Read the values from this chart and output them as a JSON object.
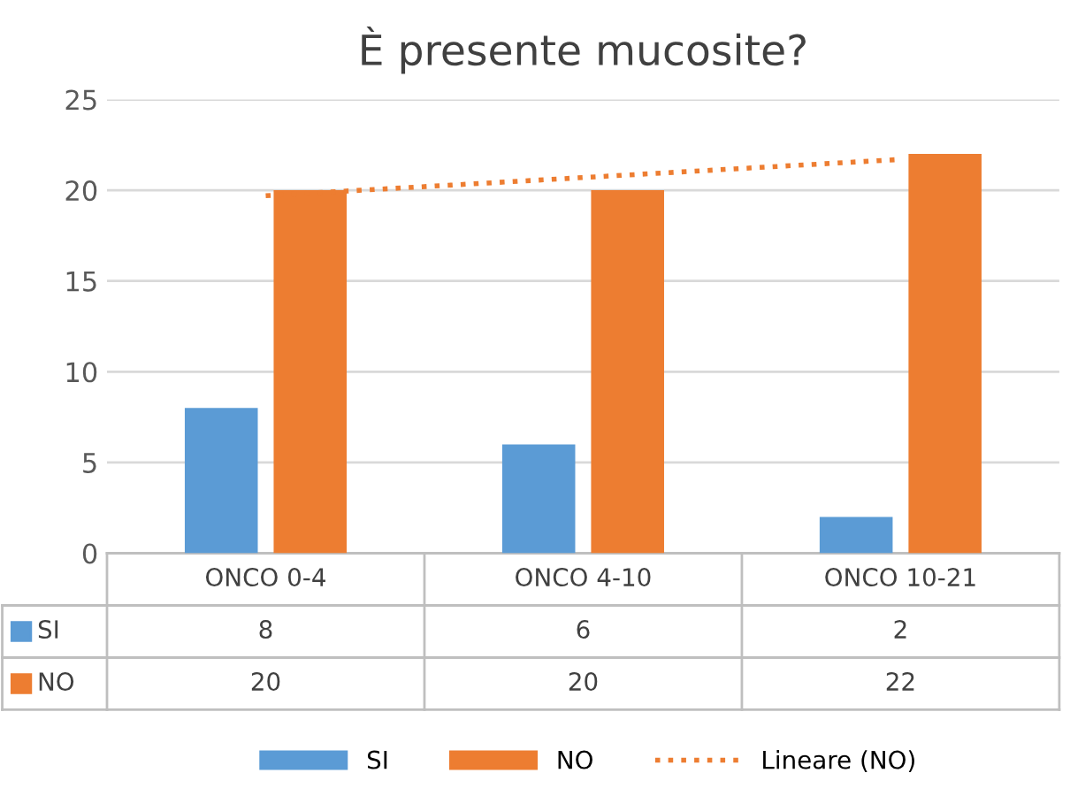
{
  "chart_data": {
    "type": "bar",
    "title": "È presente mucosite?",
    "categories": [
      "ONCO 0-4",
      "ONCO 4-10",
      "ONCO 10-21"
    ],
    "series": [
      {
        "name": "SI",
        "color": "#5b9bd5",
        "values": [
          8,
          6,
          2
        ],
        "value_labels": [
          "8",
          "6",
          "2"
        ]
      },
      {
        "name": "NO",
        "color": "#ed7d31",
        "values": [
          20,
          20,
          22
        ],
        "value_labels": [
          "20",
          "20",
          "22"
        ]
      },
      {
        "name": "Lineare (NO)",
        "type": "line",
        "color": "#ed7d31",
        "line_style": "dotted",
        "values": [
          19.7,
          20.7,
          21.7
        ]
      }
    ],
    "ylim": [
      0,
      25
    ],
    "yticks": [
      0,
      5,
      10,
      15,
      20,
      25
    ],
    "grid": "y",
    "legend": "bottom"
  }
}
